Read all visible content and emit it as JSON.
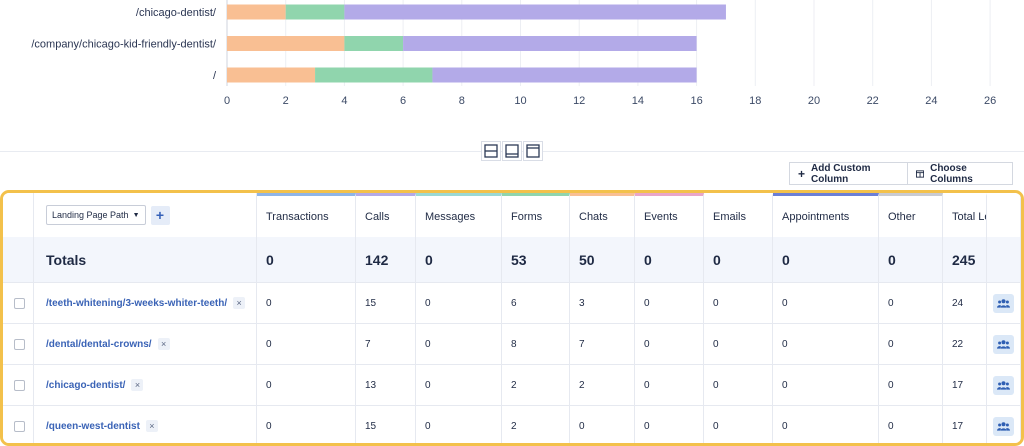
{
  "chart_data": {
    "type": "bar",
    "orientation": "horizontal",
    "stacked": true,
    "categories": [
      "/chicago-dentist/",
      "/company/chicago-kid-friendly-dentist/",
      "/"
    ],
    "series": [
      {
        "values": [
          2,
          4,
          3
        ],
        "color": "#f9bf93"
      },
      {
        "values": [
          2,
          2,
          4
        ],
        "color": "#90d5ad"
      },
      {
        "values": [
          13,
          10,
          9
        ],
        "color": "#b3aae8"
      }
    ],
    "xlim": [
      0,
      26
    ],
    "xticks": [
      0,
      2,
      4,
      6,
      8,
      10,
      12,
      14,
      16,
      18,
      20,
      22,
      24,
      26
    ],
    "grid": "vertical",
    "title": "",
    "xlabel": "",
    "ylabel": ""
  },
  "toolbar": {
    "add_custom_column": "Add Custom Column",
    "choose_columns": "Choose Columns"
  },
  "table": {
    "dimension_select": "Landing Page Path",
    "columns": [
      {
        "label": "Transactions",
        "accent": "#8fb5e8"
      },
      {
        "label": "Calls",
        "accent": "#b3aae8"
      },
      {
        "label": "Messages",
        "accent": "#9bd9d4"
      },
      {
        "label": "Forms",
        "accent": "#90d5ad"
      },
      {
        "label": "Chats",
        "accent": "#f9bf93"
      },
      {
        "label": "Events",
        "accent": "#e9a6c9"
      },
      {
        "label": "Emails",
        "accent": "#ffffff"
      },
      {
        "label": "Appointments",
        "accent": "#6b7fd6"
      },
      {
        "label": "Other",
        "accent": "#c9cbd2"
      },
      {
        "label": "Total Le",
        "accent": "#ffffff"
      }
    ],
    "totals": {
      "label": "Totals",
      "values": [
        "0",
        "142",
        "0",
        "53",
        "50",
        "0",
        "0",
        "0",
        "0",
        "245"
      ]
    },
    "rows": [
      {
        "path": "/teeth-whitening/3-weeks-whiter-teeth/",
        "values": [
          "0",
          "15",
          "0",
          "6",
          "3",
          "0",
          "0",
          "0",
          "0",
          "24"
        ]
      },
      {
        "path": "/dental/dental-crowns/",
        "values": [
          "0",
          "7",
          "0",
          "8",
          "7",
          "0",
          "0",
          "0",
          "0",
          "22"
        ]
      },
      {
        "path": "/chicago-dentist/",
        "values": [
          "0",
          "13",
          "0",
          "2",
          "2",
          "0",
          "0",
          "0",
          "0",
          "17"
        ]
      },
      {
        "path": "/queen-west-dentist",
        "values": [
          "0",
          "15",
          "0",
          "2",
          "0",
          "0",
          "0",
          "0",
          "0",
          "17"
        ]
      }
    ],
    "remove_glyph": "×",
    "add_glyph": "+"
  }
}
